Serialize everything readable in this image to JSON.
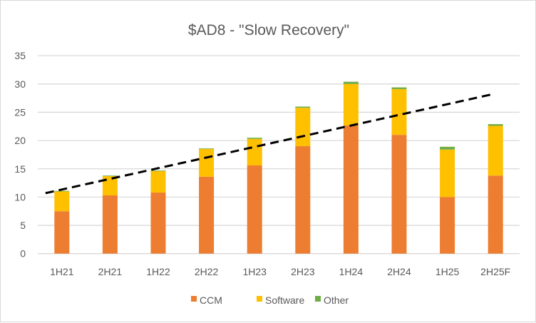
{
  "chart_data": {
    "type": "bar",
    "stacked": true,
    "title": "$AD8 - \"Slow Recovery\"",
    "xlabel": "",
    "ylabel": "",
    "categories": [
      "1H21",
      "2H21",
      "1H22",
      "2H22",
      "1H23",
      "2H23",
      "1H24",
      "2H24",
      "1H25",
      "2H25F"
    ],
    "series": [
      {
        "name": "CCM",
        "color": "#ED7D31",
        "values": [
          7.5,
          10.3,
          10.8,
          13.6,
          15.6,
          19.0,
          22.7,
          21.0,
          10.0,
          13.8
        ]
      },
      {
        "name": "Software",
        "color": "#FFC000",
        "values": [
          3.5,
          3.4,
          3.8,
          4.9,
          4.7,
          6.8,
          7.3,
          8.1,
          8.4,
          8.8
        ]
      },
      {
        "name": "Other",
        "color": "#70AD47",
        "values": [
          0.1,
          0.1,
          0.1,
          0.1,
          0.2,
          0.2,
          0.4,
          0.3,
          0.5,
          0.3
        ]
      }
    ],
    "ylim": [
      0,
      35
    ],
    "yticks": [
      "0",
      "5",
      "10",
      "15",
      "20",
      "25",
      "30",
      "35"
    ],
    "grid": true,
    "legend": "bottom",
    "trendline": {
      "type": "linear",
      "style": "dashed",
      "color": "#000000",
      "intercept": 9.45,
      "slope": 1.886
    }
  }
}
